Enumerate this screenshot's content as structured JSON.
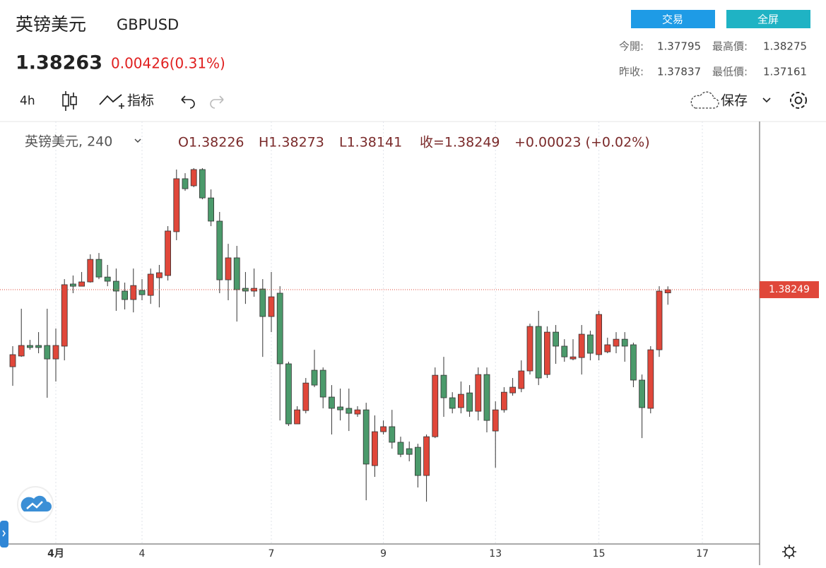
{
  "header": {
    "name": "英镑美元",
    "symbol": "GBPUSD",
    "price": "1.38263",
    "change": "0.00426(0.31%)",
    "buttons": [
      "交易",
      "全屏"
    ],
    "stats": [
      {
        "label": "今開:",
        "value": "1.37795"
      },
      {
        "label": "最高價:",
        "value": "1.38275"
      },
      {
        "label": "昨收:",
        "value": "1.37837"
      },
      {
        "label": "最低價:",
        "value": "1.37161"
      }
    ]
  },
  "toolbar": {
    "interval": "4h",
    "indicators": "指标",
    "save": "保存"
  },
  "chart_data": {
    "type": "candlestick",
    "legend_title": "英镑美元, 240",
    "ohlc_legend": [
      "O1.38226",
      "H1.38273",
      "L1.38141",
      "收=1.38249",
      "+0.00023 (+0.02%)"
    ],
    "categories": [
      null,
      null,
      null,
      null,
      null,
      "4月",
      null,
      null,
      null,
      null,
      null,
      null,
      null,
      null,
      null,
      "4",
      null,
      null,
      null,
      null,
      null,
      null,
      null,
      null,
      null,
      null,
      null,
      null,
      null,
      null,
      "7",
      null,
      null,
      null,
      null,
      null,
      null,
      null,
      null,
      null,
      null,
      null,
      null,
      "9",
      null,
      null,
      null,
      null,
      null,
      null,
      null,
      null,
      null,
      null,
      null,
      null,
      "13",
      null,
      null,
      null,
      null,
      null,
      null,
      null,
      null,
      null,
      null,
      null,
      "15",
      null,
      null,
      null,
      null,
      null,
      null,
      null,
      null
    ],
    "future_labels": [
      "17"
    ],
    "open": [
      1.37695,
      1.37772,
      1.37848,
      1.37848,
      1.37848,
      1.37751,
      1.37843,
      1.3829,
      1.38274,
      1.38305,
      1.38467,
      1.3834,
      1.3831,
      1.38239,
      1.38178,
      1.38244,
      1.38208,
      1.38335,
      1.38351,
      1.38666,
      1.39047,
      1.38996,
      1.39113,
      1.38909,
      1.38742,
      1.3832,
      1.38478,
      1.38259,
      1.38239,
      1.38254,
      1.38056,
      1.38224,
      1.37716,
      1.37284,
      1.3738,
      1.3767,
      1.3767,
      1.37477,
      1.37406,
      1.37396,
      1.37355,
      1.37385,
      1.36984,
      1.37228,
      1.37264,
      1.37152,
      1.37106,
      1.37116,
      1.36913,
      1.37192,
      1.37634,
      1.37472,
      1.37401,
      1.37507,
      1.37375,
      1.37639,
      1.37233,
      1.37385,
      1.37507,
      1.37538,
      1.37665,
      1.37985,
      1.37639,
      1.37944,
      1.37843,
      1.37751,
      1.37761,
      1.37924,
      1.37782,
      1.37802,
      1.37843,
      1.37893,
      1.37853,
      1.37599,
      1.37396,
      1.37817,
      1.38226
    ],
    "high": [
      1.37843,
      1.38112,
      1.37888,
      1.37944,
      1.38112,
      1.3797,
      1.38325,
      1.38351,
      1.38376,
      1.38503,
      1.38513,
      1.38427,
      1.38401,
      1.383,
      1.38401,
      1.38325,
      1.38401,
      1.38427,
      1.38706,
      1.39113,
      1.39087,
      1.39123,
      1.39123,
      1.3897,
      1.38808,
      1.38579,
      1.38564,
      1.38376,
      1.38401,
      1.38325,
      1.38376,
      1.38274,
      1.37731,
      1.37411,
      1.37614,
      1.37817,
      1.3769,
      1.37563,
      1.37538,
      1.37538,
      1.37411,
      1.37436,
      1.37345,
      1.37309,
      1.37385,
      1.37192,
      1.37157,
      1.37141,
      1.37208,
      1.3769,
      1.37766,
      1.37512,
      1.37589,
      1.37563,
      1.3769,
      1.3769,
      1.37446,
      1.37548,
      1.37614,
      1.37741,
      1.38005,
      1.38097,
      1.37985,
      1.37995,
      1.37893,
      1.37893,
      1.37995,
      1.37954,
      1.38097,
      1.37904,
      1.37944,
      1.37944,
      1.37868,
      1.37639,
      1.37843,
      1.38274,
      1.38273
    ],
    "low": [
      1.37558,
      1.37766,
      1.37817,
      1.37792,
      1.37472,
      1.37589,
      1.37741,
      1.38224,
      1.38274,
      1.383,
      1.38325,
      1.38274,
      1.38097,
      1.38107,
      1.38086,
      1.38173,
      1.38147,
      1.38122,
      1.38315,
      1.38605,
      1.3896,
      1.38986,
      1.38899,
      1.38706,
      1.38224,
      1.38173,
      1.3802,
      1.38147,
      1.38198,
      1.37766,
      1.37944,
      1.37309,
      1.37269,
      1.37284,
      1.3736,
      1.37548,
      1.37396,
      1.37208,
      1.37309,
      1.37233,
      1.37335,
      1.36735,
      1.36903,
      1.37208,
      1.37106,
      1.37045,
      1.37015,
      1.36827,
      1.36725,
      1.37182,
      1.37335,
      1.3736,
      1.3736,
      1.37335,
      1.37309,
      1.37223,
      1.36969,
      1.37365,
      1.37487,
      1.37512,
      1.37639,
      1.37563,
      1.37614,
      1.37716,
      1.37731,
      1.37741,
      1.37639,
      1.37741,
      1.37741,
      1.37792,
      1.37792,
      1.37731,
      1.37548,
      1.37182,
      1.3736,
      1.37766,
      1.38141
    ],
    "close": [
      1.37782,
      1.37848,
      1.37833,
      1.37833,
      1.37751,
      1.37848,
      1.38285,
      1.38274,
      1.38305,
      1.38467,
      1.3834,
      1.3831,
      1.38239,
      1.38178,
      1.38279,
      1.38213,
      1.38361,
      1.38371,
      1.38671,
      1.39047,
      1.38975,
      1.39113,
      1.38909,
      1.38742,
      1.3832,
      1.38478,
      1.38249,
      1.38239,
      1.38259,
      1.38056,
      1.38198,
      1.37716,
      1.37284,
      1.37385,
      1.37578,
      1.37563,
      1.37477,
      1.37396,
      1.37385,
      1.3736,
      1.37385,
      1.36995,
      1.37228,
      1.37264,
      1.37152,
      1.37065,
      1.37065,
      1.36913,
      1.37192,
      1.37634,
      1.37472,
      1.37396,
      1.37497,
      1.37375,
      1.37639,
      1.37309,
      1.37385,
      1.37512,
      1.37548,
      1.37665,
      1.37985,
      1.37614,
      1.37944,
      1.37843,
      1.37766,
      1.37766,
      1.37929,
      1.37792,
      1.38071,
      1.37853,
      1.37893,
      1.37843,
      1.37599,
      1.37401,
      1.37817,
      1.38239,
      1.38249
    ],
    "up_color": "#e0473a",
    "down_color": "#4b9a6b",
    "ylim": [
      1.36446,
      1.39443
    ],
    "grid": true,
    "last_price_line": true
  }
}
